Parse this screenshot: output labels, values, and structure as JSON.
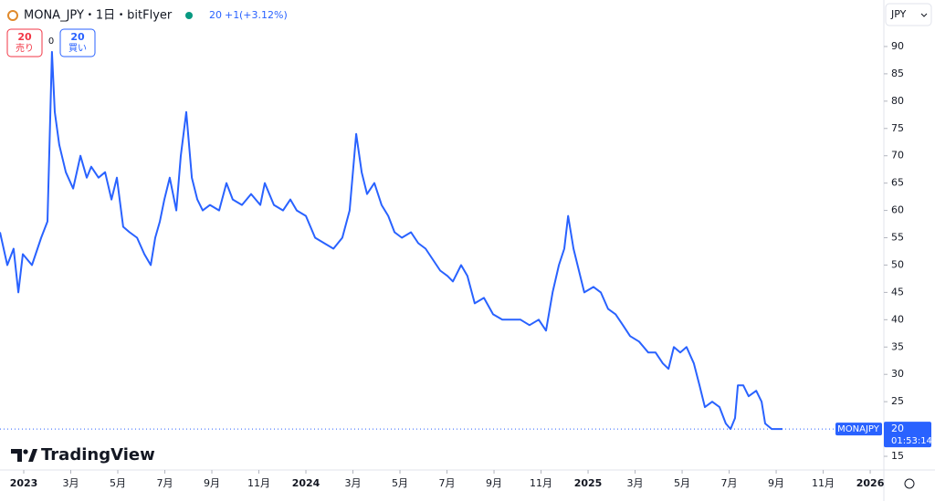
{
  "chart_data": {
    "type": "line",
    "title": "MONA_JPY・1日・bitFlyer",
    "last_price": 20,
    "change": "+1",
    "change_pct": "(+3.12%)",
    "sell": {
      "value": 20,
      "label": "売り"
    },
    "buy": {
      "value": 20,
      "label": "買い"
    },
    "spread": 0,
    "currency": "JPY",
    "symbol_label": "MONAJPY",
    "countdown": "01:53:14",
    "brand": "TradingView",
    "color": "#2962ff",
    "x": [
      -1.01,
      -0.7,
      -0.43,
      -0.23,
      -0.04,
      0.35,
      0.74,
      1.01,
      1.2,
      1.32,
      1.51,
      1.79,
      2.1,
      2.41,
      2.68,
      2.87,
      3.18,
      3.46,
      3.73,
      3.96,
      4.23,
      4.5,
      4.82,
      5.13,
      5.4,
      5.59,
      5.79,
      5.98,
      6.21,
      6.49,
      6.68,
      6.91,
      7.15,
      7.38,
      7.61,
      7.92,
      8.31,
      8.62,
      8.89,
      9.28,
      9.67,
      10.06,
      10.25,
      10.64,
      11.03,
      11.34,
      11.61,
      12.0,
      12.39,
      12.78,
      13.17,
      13.55,
      13.86,
      14.14,
      14.37,
      14.6,
      14.91,
      15.22,
      15.5,
      15.77,
      16.08,
      16.47,
      16.78,
      17.09,
      17.4,
      17.71,
      18.02,
      18.25,
      18.6,
      18.87,
      19.18,
      19.57,
      19.96,
      20.35,
      20.74,
      21.13,
      21.51,
      21.9,
      22.21,
      22.49,
      22.76,
      22.99,
      23.15,
      23.38,
      23.61,
      23.84,
      24.23,
      24.54,
      24.85,
      25.17,
      25.48,
      25.79,
      26.17,
      26.56,
      26.87,
      27.18,
      27.42,
      27.65,
      27.92,
      28.19,
      28.5,
      28.74,
      28.97,
      29.28,
      29.59,
      29.86,
      30.06,
      30.25,
      30.37,
      30.6,
      30.83,
      31.15,
      31.38,
      31.53,
      31.81,
      32.08,
      32.27
    ],
    "values": [
      56,
      50,
      53,
      45,
      52,
      50,
      55,
      58,
      89,
      78,
      72,
      67,
      64,
      70,
      66,
      68,
      66,
      67,
      62,
      66,
      57,
      56,
      55,
      52,
      50,
      55,
      58,
      62,
      66,
      60,
      70,
      78,
      66,
      62,
      60,
      61,
      60,
      65,
      62,
      61,
      63,
      61,
      65,
      61,
      60,
      62,
      60,
      59,
      55,
      54,
      53,
      55,
      60,
      74,
      67,
      63,
      65,
      61,
      59,
      56,
      55,
      56,
      54,
      53,
      51,
      49,
      48,
      47,
      50,
      48,
      43,
      44,
      41,
      40,
      40,
      40,
      39,
      40,
      38,
      45,
      50,
      53,
      59,
      53,
      49,
      45,
      46,
      45,
      42,
      41,
      39,
      37,
      36,
      34,
      34,
      32,
      31,
      35,
      34,
      35,
      32,
      28,
      24,
      25,
      24,
      21,
      20,
      22,
      28,
      28,
      26,
      27,
      25,
      21,
      20,
      20,
      20
    ],
    "xlim": [
      -1.01,
      36.58
    ],
    "ylim": [
      12.5,
      93.5
    ],
    "yticks": [
      15,
      20,
      25,
      30,
      35,
      40,
      45,
      50,
      55,
      60,
      65,
      70,
      75,
      80,
      85,
      90
    ],
    "xticks": [
      {
        "value": 0,
        "label": "2023"
      },
      {
        "value": 2,
        "label": "3月"
      },
      {
        "value": 4,
        "label": "5月"
      },
      {
        "value": 6,
        "label": "7月"
      },
      {
        "value": 8,
        "label": "9月"
      },
      {
        "value": 10,
        "label": "11月"
      },
      {
        "value": 12,
        "label": "2024"
      },
      {
        "value": 14,
        "label": "3月"
      },
      {
        "value": 16,
        "label": "5月"
      },
      {
        "value": 18,
        "label": "7月"
      },
      {
        "value": 20,
        "label": "9月"
      },
      {
        "value": 22,
        "label": "11月"
      },
      {
        "value": 24,
        "label": "2025"
      },
      {
        "value": 26,
        "label": "3月"
      },
      {
        "value": 28,
        "label": "5月"
      },
      {
        "value": 30,
        "label": "7月"
      },
      {
        "value": 32,
        "label": "9月"
      },
      {
        "value": 34,
        "label": "11月"
      },
      {
        "value": 36,
        "label": "2026"
      }
    ]
  }
}
